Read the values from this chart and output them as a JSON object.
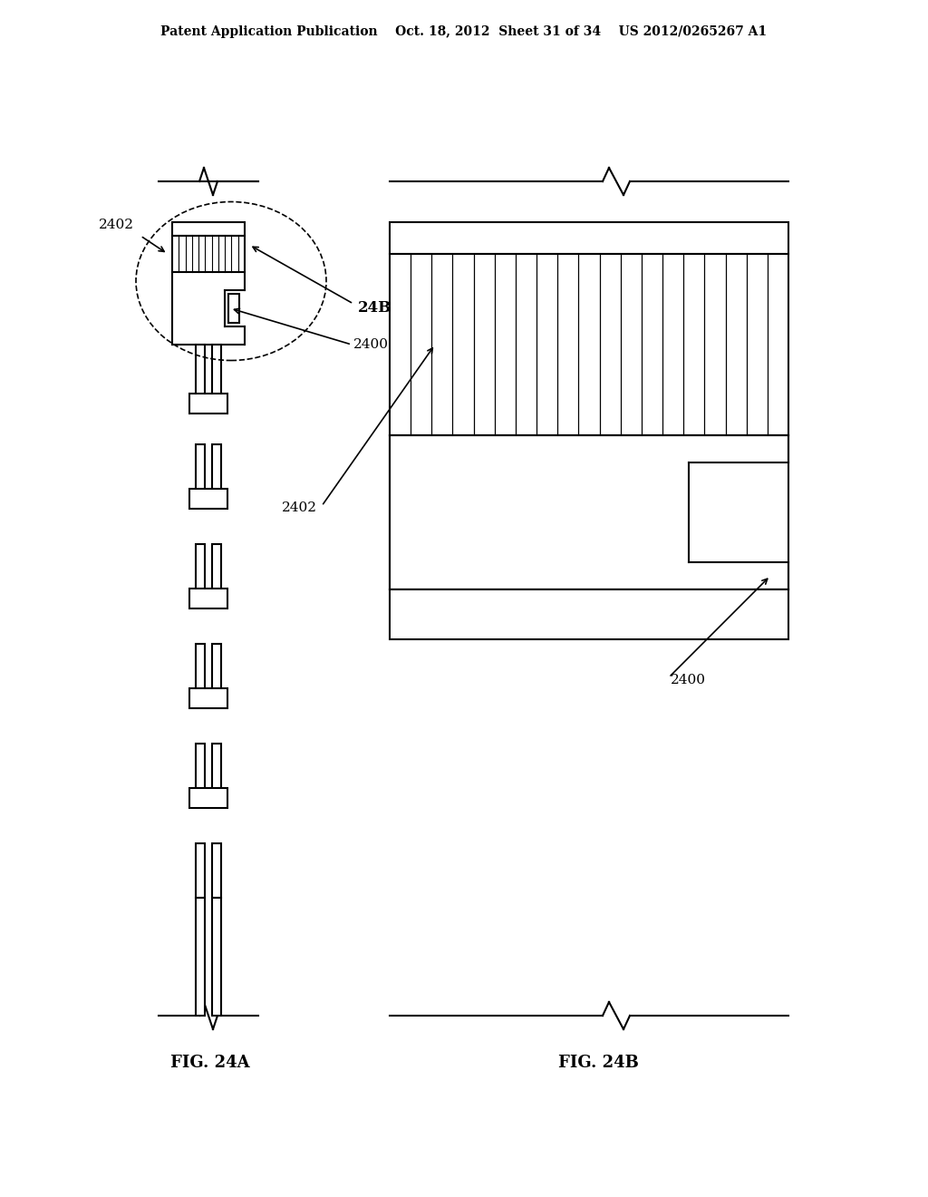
{
  "bg_color": "#ffffff",
  "line_color": "#000000",
  "header_text": "Patent Application Publication    Oct. 18, 2012  Sheet 31 of 34    US 2012/0265267 A1",
  "fig24a_label": "FIG. 24A",
  "fig24b_label": "FIG. 24B",
  "label_2402_a": "2402",
  "label_24B": "24B",
  "label_2400_a": "2400",
  "label_2402_b": "2402",
  "label_2400_b": "2400"
}
